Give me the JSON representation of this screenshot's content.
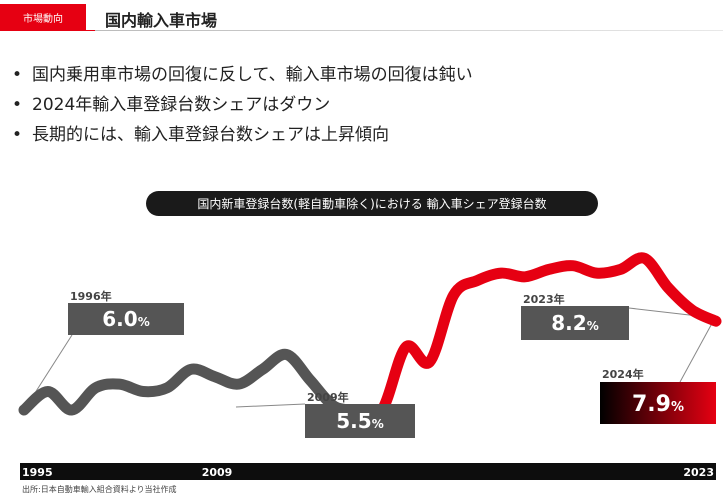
{
  "header": {
    "tag": "市場動向",
    "title": "国内輸入車市場"
  },
  "bullets": [
    "国内乗用車市場の回復に反して、輸入車市場の回復は鈍い",
    "2024年輸入車登録台数シェアはダウン",
    "長期的には、輸入車登録台数シェアは上昇傾向"
  ],
  "chart_data": {
    "type": "line",
    "title": "国内新車登録台数(軽自動車除く)における 輸入車シェア登録台数",
    "x_tick_labels": [
      "1995",
      "2009",
      "2023"
    ],
    "series": [
      {
        "color": "#555555",
        "x": [
          1995,
          1996,
          1997,
          1998,
          1999,
          2000,
          2001,
          2002,
          2003,
          2004,
          2005,
          2006,
          2007,
          2008,
          2009
        ],
        "y": [
          5.5,
          6.0,
          5.5,
          6.1,
          6.2,
          6.0,
          6.1,
          6.6,
          6.4,
          6.2,
          6.6,
          7.0,
          6.3,
          5.6,
          5.5
        ]
      },
      {
        "color": "#e60012",
        "x": [
          2009,
          2010,
          2011,
          2012,
          2013,
          2014,
          2015,
          2016,
          2017,
          2018,
          2019,
          2020,
          2021,
          2022,
          2023,
          2024
        ],
        "y": [
          5.5,
          5.5,
          7.2,
          6.8,
          8.6,
          9.0,
          9.2,
          9.1,
          9.3,
          9.4,
          9.2,
          9.3,
          9.6,
          8.8,
          8.2,
          7.9
        ]
      }
    ],
    "callouts": [
      {
        "year": "1996年",
        "value": "6.0%",
        "style": "gray"
      },
      {
        "year": "2009年",
        "value": "5.5%",
        "style": "gray"
      },
      {
        "year": "2023年",
        "value": "8.2%",
        "style": "gray"
      },
      {
        "year": "2024年",
        "value": "7.9%",
        "style": "red"
      }
    ]
  },
  "source": "出所:日本自動車輸入組合資料より当社作成"
}
